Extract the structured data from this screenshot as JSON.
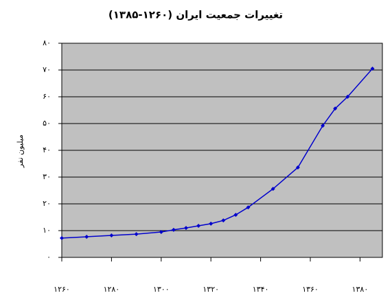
{
  "chart_data": {
    "type": "line",
    "title": "تغییرات جمعیت ایران (۱۲۶۰-۱۳۸۵)",
    "y_label": "میلیون نفر",
    "x": [
      1260,
      1270,
      1280,
      1290,
      1300,
      1305,
      1310,
      1315,
      1320,
      1325,
      1330,
      1335,
      1345,
      1355,
      1365,
      1370,
      1375,
      1385
    ],
    "series": [
      {
        "color": "#0000cc",
        "values": [
          7.2,
          7.7,
          8.2,
          8.7,
          9.5,
          10.3,
          11,
          11.8,
          12.6,
          13.8,
          15.9,
          18.7,
          25.6,
          33.6,
          49.2,
          55.6,
          60,
          70.5
        ]
      }
    ],
    "xlim": [
      1260,
      1389
    ],
    "xticks": [
      {
        "value": 1260,
        "label": "۱۲۶۰"
      },
      {
        "value": 1280,
        "label": "۱۲۸۰"
      },
      {
        "value": 1300,
        "label": "۱۳۰۰"
      },
      {
        "value": 1320,
        "label": "۱۳۲۰"
      },
      {
        "value": 1340,
        "label": "۱۳۴۰"
      },
      {
        "value": 1360,
        "label": "۱۳۶۰"
      },
      {
        "value": 1380,
        "label": "۱۳۸۰"
      }
    ],
    "ylim": [
      0,
      80
    ],
    "yticks": [
      {
        "value": 0,
        "label": "۰"
      },
      {
        "value": 10,
        "label": "۱۰"
      },
      {
        "value": 20,
        "label": "۲۰"
      },
      {
        "value": 30,
        "label": "۳۰"
      },
      {
        "value": 40,
        "label": "۴۰"
      },
      {
        "value": 50,
        "label": "۵۰"
      },
      {
        "value": 60,
        "label": "۶۰"
      },
      {
        "value": 70,
        "label": "۷۰"
      },
      {
        "value": 80,
        "label": "۸۰"
      }
    ],
    "grid": true,
    "plot_background": "#c0c0c0"
  }
}
